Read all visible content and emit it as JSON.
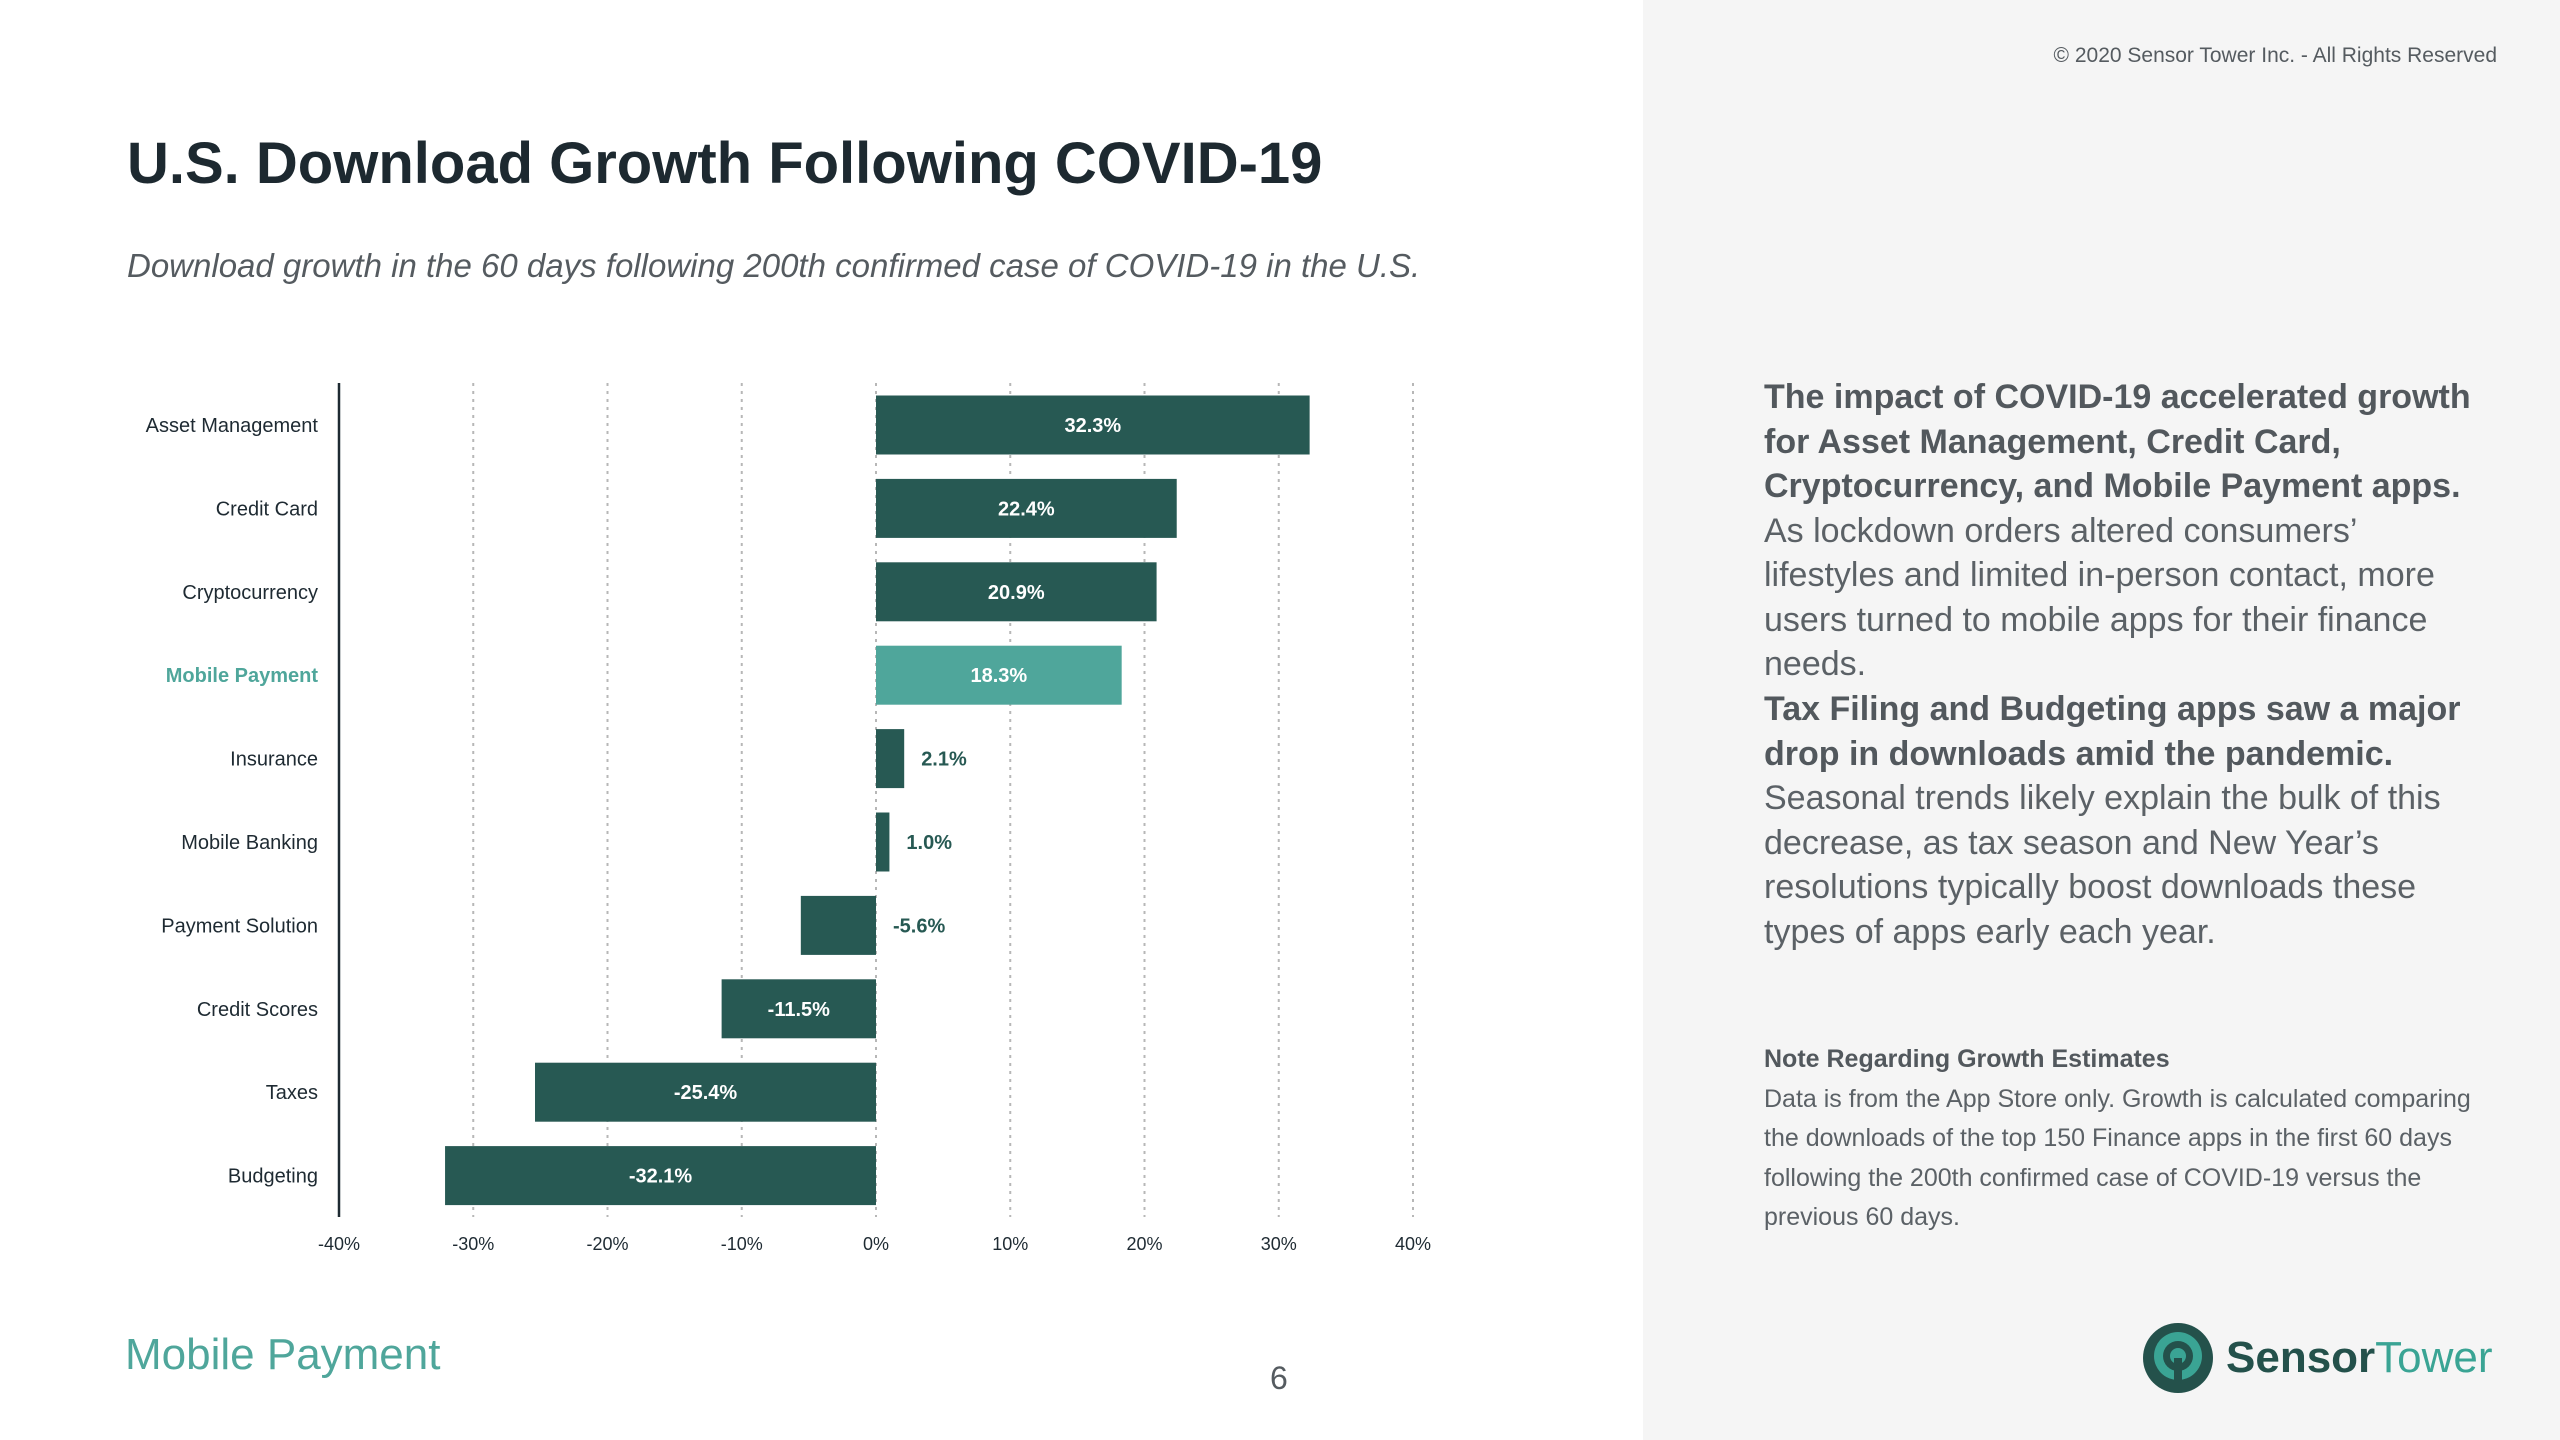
{
  "copyright": "© 2020 Sensor Tower Inc. - All Rights Reserved",
  "title": "U.S. Download Growth Following COVID-19",
  "subtitle": "Download growth in the 60 days following 200th confirmed case of COVID-19 in the U.S.",
  "colors": {
    "bar": "#275953",
    "highlight": "#4fa69b",
    "label": "#1e2a32",
    "panel": "#f5f5f5"
  },
  "chart_data": {
    "type": "bar",
    "orientation": "horizontal",
    "categories": [
      "Asset Management",
      "Credit Card",
      "Cryptocurrency",
      "Mobile Payment",
      "Insurance",
      "Mobile Banking",
      "Payment Solution",
      "Credit Scores",
      "Taxes",
      "Budgeting"
    ],
    "values": [
      32.3,
      22.4,
      20.9,
      18.3,
      2.1,
      1.0,
      -5.6,
      -11.5,
      -25.4,
      -32.1
    ],
    "value_labels": [
      "32.3%",
      "22.4%",
      "20.9%",
      "18.3%",
      "2.1%",
      "1.0%",
      "-5.6%",
      "-11.5%",
      "-25.4%",
      "-32.1%"
    ],
    "highlight_category": "Mobile Payment",
    "xlim": [
      -40,
      40
    ],
    "xticks": [
      -40,
      -30,
      -20,
      -10,
      0,
      10,
      20,
      30,
      40
    ],
    "xtick_labels": [
      "-40%",
      "-30%",
      "-20%",
      "-10%",
      "0%",
      "10%",
      "20%",
      "30%",
      "40%"
    ],
    "grid": "vertical dotted"
  },
  "insights": [
    {
      "strong": "The impact of COVID-19 accelerated growth for Asset Management, Credit Card, Cryptocurrency, and Mobile Payment apps.",
      "text": " As lockdown orders altered consumers’ lifestyles and limited in-person contact, more users turned to mobile apps for their finance needs."
    },
    {
      "strong": "Tax Filing and Budgeting apps saw a major drop in downloads amid the pandemic.",
      "text": " Seasonal trends likely explain the bulk of this decrease, as tax season and New Year’s resolutions typically boost downloads these types of apps early each year."
    }
  ],
  "note": {
    "title": "Note Regarding Growth Estimates",
    "text": "Data is from the App Store only. Growth is calculated comparing the downloads of the top 150 Finance apps in the first 60 days following the 200th confirmed case of COVID-19 versus the previous 60 days."
  },
  "footer": {
    "section": "Mobile Payment",
    "page": "6"
  },
  "logo": {
    "word1": "Sensor",
    "word2": "Tower",
    "icon": "sensor-tower-logo-icon"
  }
}
